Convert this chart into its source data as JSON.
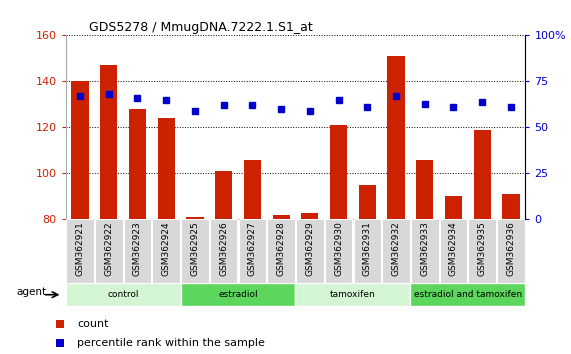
{
  "title": "GDS5278 / MmugDNA.7222.1.S1_at",
  "samples": [
    "GSM362921",
    "GSM362922",
    "GSM362923",
    "GSM362924",
    "GSM362925",
    "GSM362926",
    "GSM362927",
    "GSM362928",
    "GSM362929",
    "GSM362930",
    "GSM362931",
    "GSM362932",
    "GSM362933",
    "GSM362934",
    "GSM362935",
    "GSM362936"
  ],
  "count_values": [
    140,
    147,
    128,
    124,
    81,
    101,
    106,
    82,
    83,
    121,
    95,
    151,
    106,
    90,
    119,
    91
  ],
  "percentile_values": [
    67,
    68,
    66,
    65,
    59,
    62,
    62,
    60,
    59,
    65,
    61,
    67,
    63,
    61,
    64,
    61
  ],
  "ylim_left": [
    80,
    160
  ],
  "ylim_right": [
    0,
    100
  ],
  "yticks_left": [
    80,
    100,
    120,
    140,
    160
  ],
  "yticks_right": [
    0,
    25,
    50,
    75,
    100
  ],
  "groups": [
    {
      "label": "control",
      "start": 0,
      "end": 4,
      "color": "#d4f5d4"
    },
    {
      "label": "estradiol",
      "start": 4,
      "end": 8,
      "color": "#5cd65c"
    },
    {
      "label": "tamoxifen",
      "start": 8,
      "end": 12,
      "color": "#d4f5d4"
    },
    {
      "label": "estradiol and tamoxifen",
      "start": 12,
      "end": 16,
      "color": "#5cd65c"
    }
  ],
  "bar_color": "#cc2200",
  "dot_color": "#0000cc",
  "bar_bottom": 80,
  "tick_label_color_left": "#cc2200",
  "tick_label_color_right": "#0000cc",
  "agent_label": "agent",
  "legend_count": "count",
  "legend_percentile": "percentile rank within the sample",
  "background_color": "#ffffff",
  "plot_bg_color": "#ffffff",
  "xtick_bg_color": "#d8d8d8"
}
